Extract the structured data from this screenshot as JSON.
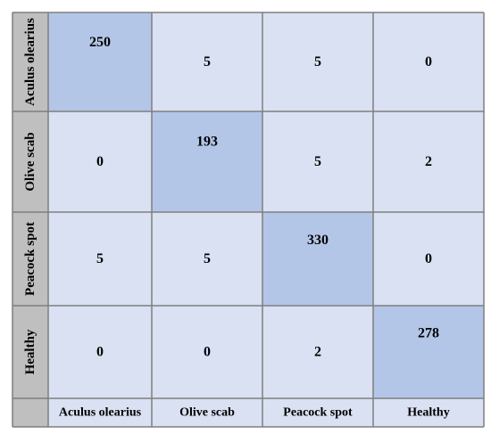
{
  "colors": {
    "diagonal_cell": "#b4c6e7",
    "offdiagonal_cell": "#d9e1f2",
    "label_cell": "#bfbfbf",
    "grid_line": "#7f7f7f"
  },
  "chart_data": {
    "type": "heatmap",
    "rows": [
      "Aculus olearius",
      "Olive scab",
      "Peacock spot",
      "Healthy"
    ],
    "columns": [
      "Aculus olearius",
      "Olive scab",
      "Peacock spot",
      "Healthy"
    ],
    "values": [
      [
        250,
        5,
        5,
        0
      ],
      [
        0,
        193,
        5,
        2
      ],
      [
        5,
        5,
        330,
        0
      ],
      [
        0,
        0,
        2,
        278
      ]
    ]
  }
}
